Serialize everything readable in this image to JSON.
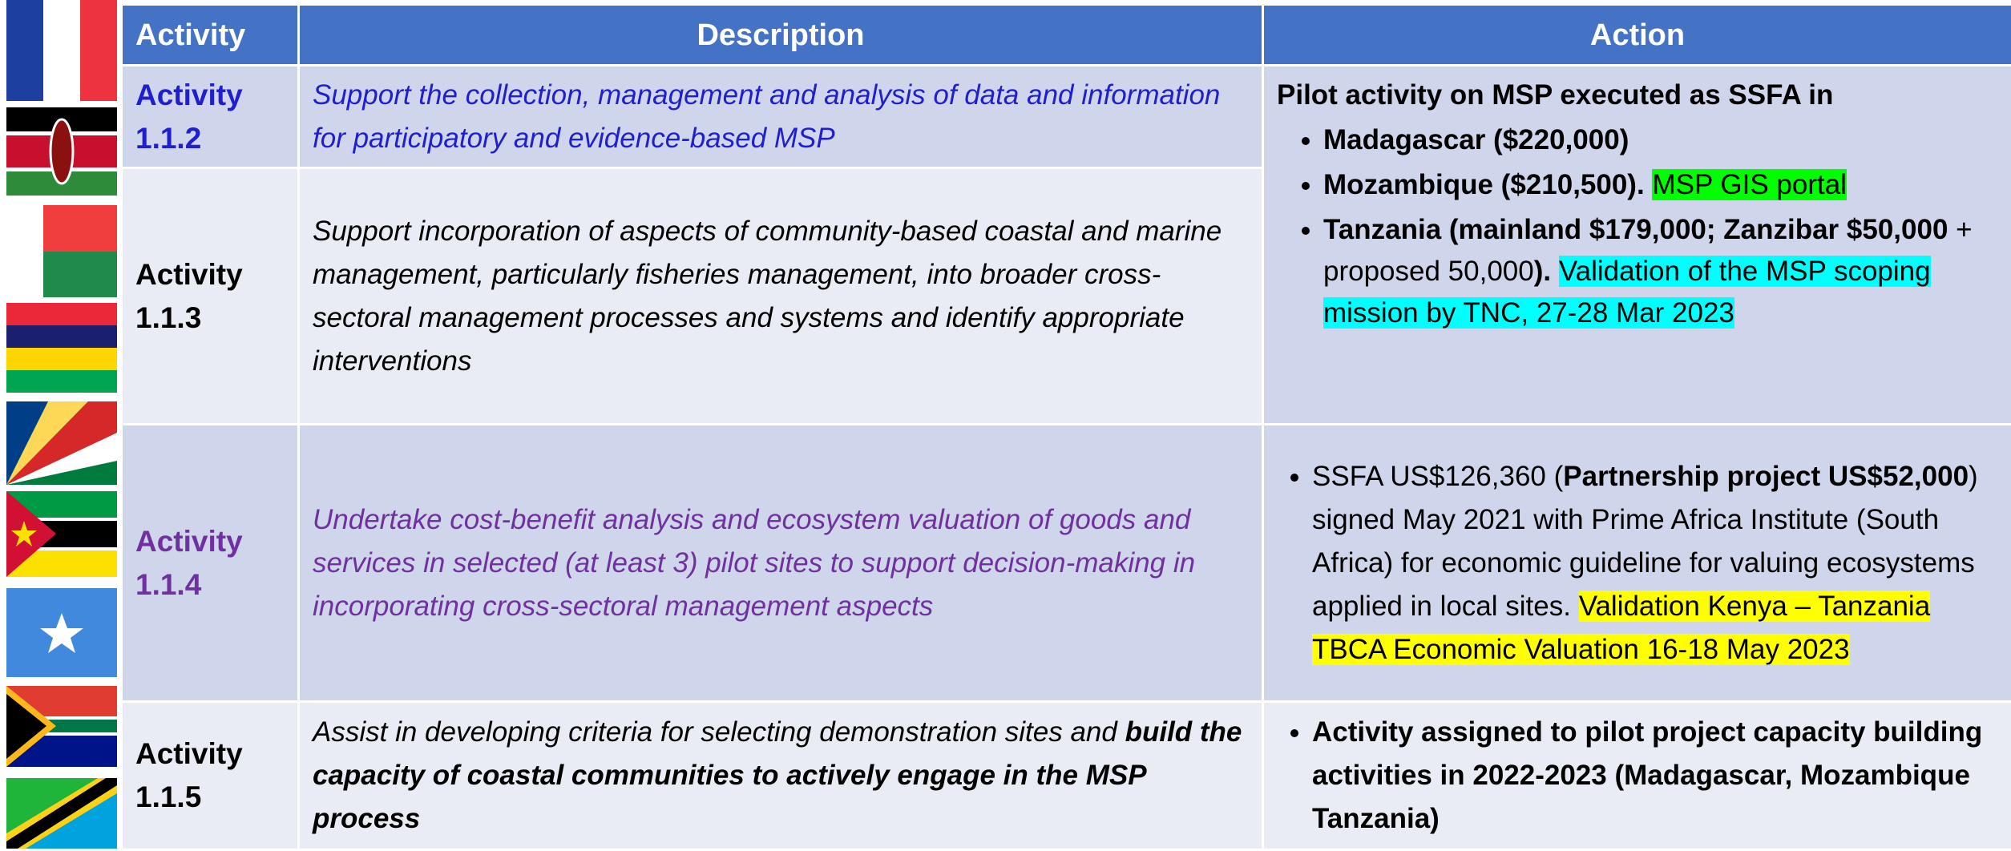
{
  "header": {
    "columns": [
      "Activity",
      "Description",
      "Action"
    ]
  },
  "rows": [
    {
      "activity": "Activity 1.1.2",
      "description": "Support the collection, management and analysis of data and information for participatory and evidence-based MSP"
    },
    {
      "activity": "Activity 1.1.3",
      "description": "Support incorporation of aspects of community-based coastal and marine management, particularly fisheries management, into broader cross-sectoral management processes and systems and identify appropriate interventions"
    },
    {
      "activity": "Activity 1.1.4",
      "description": "Undertake cost-benefit analysis and ecosystem valuation of goods and services in selected (at least 3) pilot sites to support decision-making in incorporating cross-sectoral management aspects",
      "action": [
        "SSFA US$126,360 (",
        "Partnership project US$52,000",
        ") signed May 2021 with Prime Africa Institute (South Africa) for economic guideline for valuing ecosystems applied in local sites.",
        "Validation Kenya – Tanzania TBCA Economic Valuation 16-18 May 2023"
      ]
    },
    {
      "activity": "Activity 1.1.5",
      "description": [
        "Assist in developing criteria for selecting demonstration sites and",
        "build the capacity of coastal communities to actively engage in the MSP process"
      ],
      "action": "Activity assigned to pilot project capacity building activities in 2022-2023 (Madagascar, Mozambique Tanzania)"
    }
  ],
  "merged_action": {
    "intro": "Pilot activity on MSP executed as SSFA in",
    "bullets": [
      [
        "Madagascar ($220,000)"
      ],
      [
        "Mozambique ($210,500).",
        "MSP GIS portal"
      ],
      [
        "Tanzania (mainland $179,000; Zanzibar $50,000",
        "+ proposed 50,000",
        ").",
        "Validation of the MSP scoping mission by TNC, 27-28 Mar 2023"
      ]
    ]
  }
}
